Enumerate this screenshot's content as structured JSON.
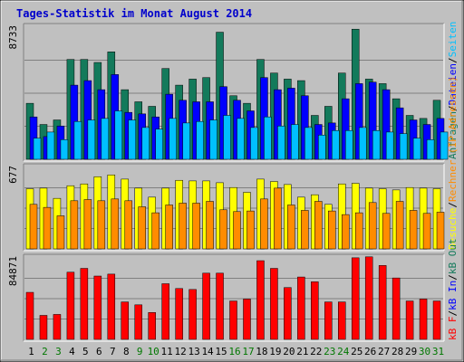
{
  "title": "Tages-Statistik im Monat August 2014",
  "colors": {
    "frame_bg": "#c0c0c0",
    "plot_bg": "#c0c0c0",
    "grid": "#808080",
    "title": "#0000cc",
    "hits": "#137a5b",
    "files": "#0000ff",
    "pages": "#00c0ff",
    "visits": "#ffff00",
    "sites": "#ff8c00",
    "kbytes": "#ff0000",
    "weekday_label": "#000000",
    "weekend_label": "#007700"
  },
  "legend": {
    "top": [
      {
        "text": "Anfragen",
        "color": "#137a5b"
      },
      {
        "text": "/",
        "color": "#000000"
      },
      {
        "text": "Dateien",
        "color": "#0000ff"
      },
      {
        "text": "/",
        "color": "#000000"
      },
      {
        "text": "Seiten",
        "color": "#00c0ff"
      }
    ],
    "middle": [
      {
        "text": "Besuche",
        "color": "#ffff00"
      },
      {
        "text": "/",
        "color": "#000000"
      },
      {
        "text": "Rechner (IP-Adressen)",
        "color": "#ff8c00"
      }
    ],
    "bottom": [
      {
        "text": "kB F",
        "color": "#ff0000"
      },
      {
        "text": "/",
        "color": "#000000"
      },
      {
        "text": "kB In",
        "color": "#0000ff"
      },
      {
        "text": "/",
        "color": "#000000"
      },
      {
        "text": "kB Out",
        "color": "#137a5b"
      }
    ]
  },
  "chart_data": [
    {
      "type": "bar",
      "panel": "hits-files-pages",
      "y_max_label": "8733",
      "ylim": [
        0,
        8733
      ],
      "grid": true,
      "categories": [
        "1",
        "2",
        "3",
        "4",
        "5",
        "6",
        "7",
        "8",
        "9",
        "10",
        "11",
        "12",
        "13",
        "14",
        "15",
        "16",
        "17",
        "18",
        "19",
        "20",
        "21",
        "22",
        "23",
        "24",
        "25",
        "26",
        "27",
        "28",
        "29",
        "30",
        "31"
      ],
      "series": [
        {
          "name": "Anfragen",
          "values": [
            3700,
            2300,
            2600,
            6600,
            6600,
            6400,
            7100,
            4600,
            3800,
            3500,
            6000,
            4900,
            5300,
            5400,
            8400,
            4200,
            3700,
            6600,
            5700,
            5300,
            5200,
            2900,
            3500,
            5700,
            8600,
            5300,
            5000,
            4000,
            2900,
            2700,
            3900
          ]
        },
        {
          "name": "Dateien",
          "values": [
            2800,
            1500,
            2200,
            4900,
            5200,
            4600,
            5600,
            3100,
            3000,
            2800,
            4300,
            3900,
            3800,
            3800,
            4800,
            3900,
            3200,
            5400,
            4600,
            4700,
            4200,
            2300,
            2400,
            4000,
            5000,
            5100,
            4600,
            3400,
            2600,
            2300,
            2700
          ]
        },
        {
          "name": "Seiten",
          "values": [
            1400,
            1800,
            1300,
            2500,
            2600,
            2700,
            3200,
            2600,
            2100,
            2000,
            2700,
            2400,
            2500,
            2600,
            2900,
            2700,
            2100,
            2800,
            2200,
            2300,
            2100,
            1600,
            1900,
            1900,
            2100,
            1900,
            1800,
            1700,
            1400,
            1300,
            1800
          ]
        }
      ]
    },
    {
      "type": "bar",
      "panel": "visits-sites",
      "y_max_label": "677",
      "ylim": [
        0,
        677
      ],
      "grid": true,
      "categories": [
        "1",
        "2",
        "3",
        "4",
        "5",
        "6",
        "7",
        "8",
        "9",
        "10",
        "11",
        "12",
        "13",
        "14",
        "15",
        "16",
        "17",
        "18",
        "19",
        "20",
        "21",
        "22",
        "23",
        "24",
        "25",
        "26",
        "27",
        "28",
        "29",
        "30",
        "31"
      ],
      "series": [
        {
          "name": "Besuche",
          "values": [
            500,
            505,
            420,
            525,
            540,
            600,
            615,
            580,
            505,
            430,
            505,
            570,
            565,
            565,
            550,
            510,
            470,
            580,
            560,
            535,
            430,
            450,
            370,
            540,
            545,
            505,
            500,
            490,
            510,
            505,
            500
          ]
        },
        {
          "name": "Rechner",
          "values": [
            370,
            345,
            275,
            400,
            410,
            400,
            415,
            400,
            350,
            300,
            365,
            380,
            380,
            395,
            325,
            310,
            315,
            415,
            505,
            365,
            320,
            395,
            315,
            285,
            300,
            385,
            295,
            395,
            320,
            295,
            305
          ]
        }
      ]
    },
    {
      "type": "bar",
      "panel": "kbytes",
      "y_max_label": "84871",
      "ylim": [
        0,
        84871
      ],
      "grid": true,
      "categories": [
        "1",
        "2",
        "3",
        "4",
        "5",
        "6",
        "7",
        "8",
        "9",
        "10",
        "11",
        "12",
        "13",
        "14",
        "15",
        "16",
        "17",
        "18",
        "19",
        "20",
        "21",
        "22",
        "23",
        "24",
        "25",
        "26",
        "27",
        "28",
        "29",
        "30",
        "31"
      ],
      "series": [
        {
          "name": "kB F",
          "values": [
            49000,
            25000,
            26000,
            70000,
            74000,
            66000,
            68000,
            39000,
            36000,
            28000,
            58000,
            53000,
            52000,
            69000,
            69000,
            40000,
            42000,
            82000,
            74000,
            54000,
            65000,
            60000,
            39000,
            39000,
            85000,
            86000,
            77000,
            64000,
            40000,
            42000,
            40000
          ]
        }
      ]
    }
  ]
}
